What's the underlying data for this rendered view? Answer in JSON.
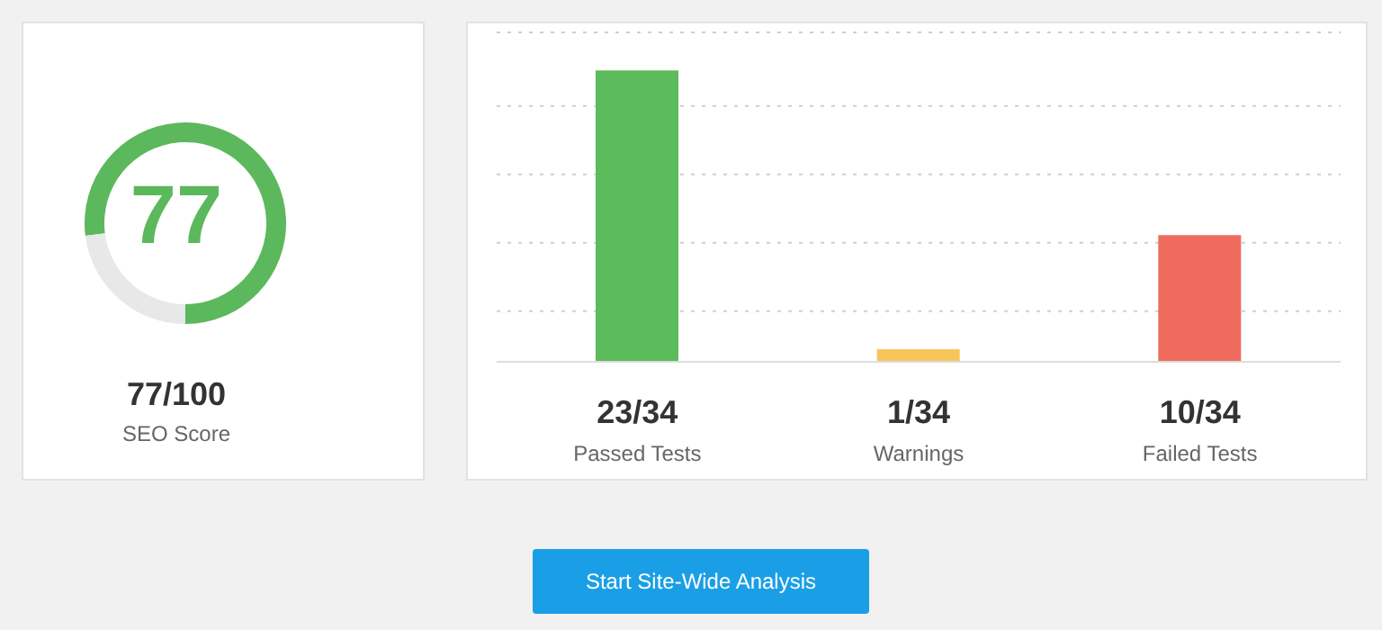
{
  "chart_data": [
    {
      "type": "donut",
      "categories": [
        null,
        null
      ],
      "values": [
        77,
        23
      ],
      "colors": [
        "#5cb85c",
        "#e8e8e8"
      ],
      "value_labels": [
        "77",
        null
      ],
      "annotations": [
        "77/100",
        "SEO Score"
      ]
    },
    {
      "type": "bar",
      "categories": [
        "Passed Tests",
        "Warnings",
        "Failed Tests"
      ],
      "values": [
        23,
        1,
        10
      ],
      "colors": [
        "#5cbb5a",
        "#f7c55a",
        "#ef6b5e"
      ],
      "value_labels": [
        "23/34",
        "1/34",
        "10/34"
      ],
      "ylim": [
        0,
        26
      ],
      "yticks": [
        {
          "value": 4,
          "label": null
        },
        {
          "value": 9.4,
          "label": null
        },
        {
          "value": 14.8,
          "label": null
        },
        {
          "value": 20.2,
          "label": null
        }
      ],
      "grid": "y",
      "tick_labels": "x"
    },
    {
      "type": "other",
      "annotations": [
        "Start Site-Wide Analysis"
      ]
    }
  ]
}
